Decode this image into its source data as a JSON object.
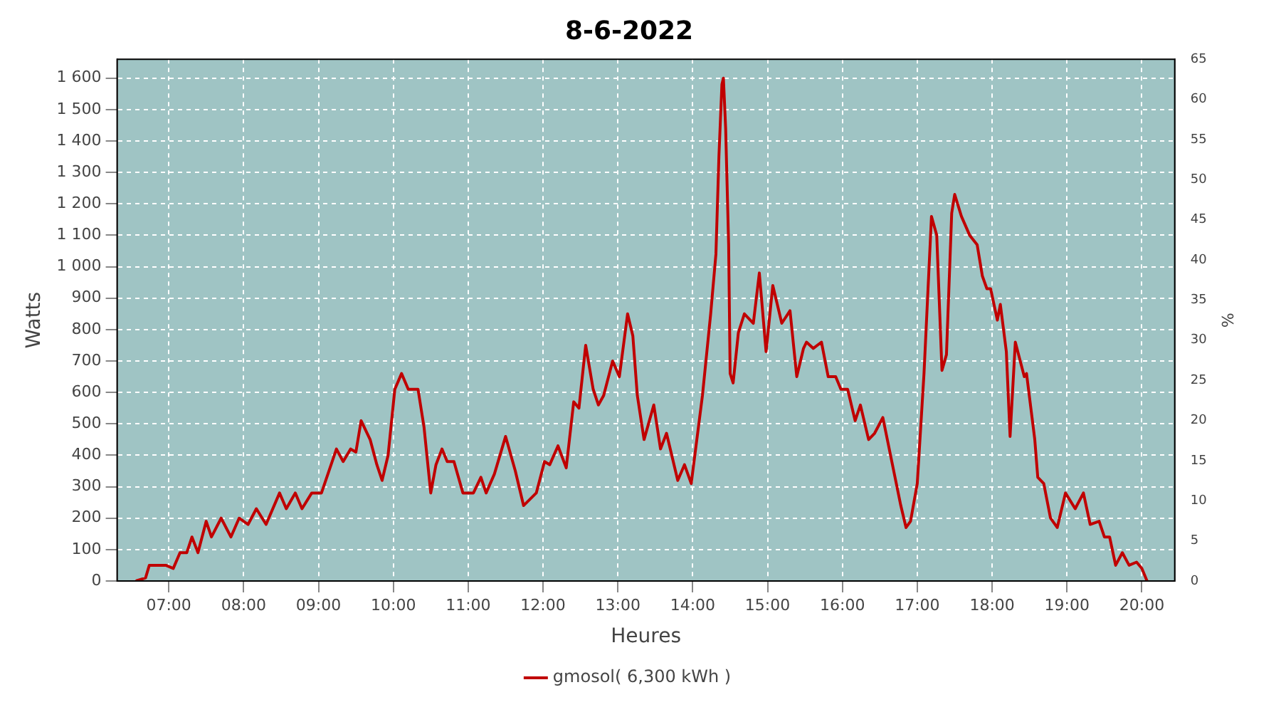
{
  "chart_data": {
    "type": "line",
    "title": "8-6-2022",
    "xlabel": "Heures",
    "ylabel": "Watts",
    "y2label": "%",
    "xlim": [
      6.31,
      20.44
    ],
    "xticks": [
      {
        "value": 7,
        "label": "07:00"
      },
      {
        "value": 8,
        "label": "08:00"
      },
      {
        "value": 9,
        "label": "09:00"
      },
      {
        "value": 10,
        "label": "10:00"
      },
      {
        "value": 11,
        "label": "11:00"
      },
      {
        "value": 12,
        "label": "12:00"
      },
      {
        "value": 13,
        "label": "13:00"
      },
      {
        "value": 14,
        "label": "14:00"
      },
      {
        "value": 15,
        "label": "15:00"
      },
      {
        "value": 16,
        "label": "16:00"
      },
      {
        "value": 17,
        "label": "17:00"
      },
      {
        "value": 18,
        "label": "18:00"
      },
      {
        "value": 19,
        "label": "19:00"
      },
      {
        "value": 20,
        "label": "20:00"
      }
    ],
    "ylim": [
      0,
      1660
    ],
    "yticks": [
      0,
      100,
      200,
      300,
      400,
      500,
      600,
      700,
      800,
      900,
      {
        "value": 1000,
        "label": "1 000"
      },
      {
        "value": 1100,
        "label": "1 100"
      },
      {
        "value": 1200,
        "label": "1 200"
      },
      {
        "value": 1300,
        "label": "1 300"
      },
      {
        "value": 1400,
        "label": "1 400"
      },
      {
        "value": 1500,
        "label": "1 500"
      },
      {
        "value": 1600,
        "label": "1 600"
      }
    ],
    "y2lim": [
      0,
      65
    ],
    "y2ticks": [
      0,
      5,
      10,
      15,
      20,
      25,
      30,
      35,
      40,
      45,
      50,
      55,
      60,
      65
    ],
    "grid": true,
    "legend": "bottom",
    "marker": "none",
    "line_style": "solid",
    "series": [
      {
        "name": "gmosol( 6,300 kWh )",
        "color": "#c00000",
        "x": [
          6.56,
          6.69,
          6.74,
          6.96,
          7.06,
          7.15,
          7.24,
          7.31,
          7.39,
          7.5,
          7.57,
          7.7,
          7.83,
          7.94,
          8.06,
          8.17,
          8.3,
          8.48,
          8.57,
          8.69,
          8.78,
          8.91,
          9.04,
          9.24,
          9.33,
          9.43,
          9.5,
          9.57,
          9.69,
          9.78,
          9.85,
          9.93,
          10.02,
          10.11,
          10.2,
          10.33,
          10.41,
          10.5,
          10.57,
          10.65,
          10.72,
          10.81,
          10.93,
          11.07,
          11.17,
          11.24,
          11.35,
          11.5,
          11.63,
          11.74,
          11.91,
          12.02,
          12.09,
          12.2,
          12.31,
          12.41,
          12.48,
          12.57,
          12.67,
          12.74,
          12.81,
          12.93,
          13.02,
          13.13,
          13.2,
          13.26,
          13.35,
          13.48,
          13.57,
          13.65,
          13.8,
          13.89,
          13.98,
          14.13,
          14.24,
          14.31,
          14.35,
          14.39,
          14.41,
          14.44,
          14.48,
          14.5,
          14.54,
          14.61,
          14.69,
          14.81,
          14.89,
          14.98,
          15.07,
          15.19,
          15.3,
          15.39,
          15.48,
          15.52,
          15.61,
          15.72,
          15.81,
          15.91,
          15.98,
          16.07,
          16.17,
          16.24,
          16.35,
          16.43,
          16.54,
          16.78,
          16.85,
          16.91,
          17.0,
          17.09,
          17.19,
          17.26,
          17.33,
          17.39,
          17.46,
          17.5,
          17.59,
          17.7,
          17.8,
          17.87,
          17.93,
          17.98,
          18.07,
          18.11,
          18.19,
          18.24,
          18.31,
          18.43,
          18.46,
          18.57,
          18.61,
          18.69,
          18.78,
          18.87,
          18.98,
          19.11,
          19.22,
          19.31,
          19.43,
          19.5,
          19.57,
          19.65,
          19.74,
          19.83,
          19.93,
          20.0,
          20.07
        ],
        "values": [
          0,
          10,
          50,
          50,
          40,
          90,
          90,
          140,
          90,
          190,
          140,
          200,
          140,
          200,
          180,
          230,
          180,
          280,
          230,
          280,
          230,
          280,
          280,
          420,
          380,
          420,
          410,
          510,
          450,
          370,
          320,
          400,
          610,
          660,
          610,
          610,
          490,
          280,
          370,
          420,
          380,
          380,
          280,
          280,
          330,
          280,
          340,
          460,
          350,
          240,
          280,
          380,
          370,
          430,
          360,
          570,
          550,
          750,
          610,
          560,
          590,
          700,
          650,
          850,
          780,
          590,
          450,
          560,
          420,
          470,
          320,
          370,
          310,
          590,
          850,
          1040,
          1350,
          1580,
          1600,
          1440,
          1070,
          660,
          630,
          790,
          850,
          820,
          980,
          730,
          940,
          820,
          860,
          650,
          740,
          760,
          740,
          760,
          650,
          650,
          610,
          610,
          510,
          560,
          450,
          470,
          520,
          240,
          170,
          190,
          310,
          660,
          1160,
          1100,
          670,
          720,
          1170,
          1230,
          1160,
          1100,
          1070,
          970,
          930,
          930,
          830,
          880,
          730,
          460,
          760,
          650,
          660,
          450,
          330,
          310,
          200,
          170,
          280,
          230,
          280,
          180,
          190,
          140,
          140,
          50,
          90,
          50,
          60,
          40,
          0
        ]
      }
    ]
  }
}
